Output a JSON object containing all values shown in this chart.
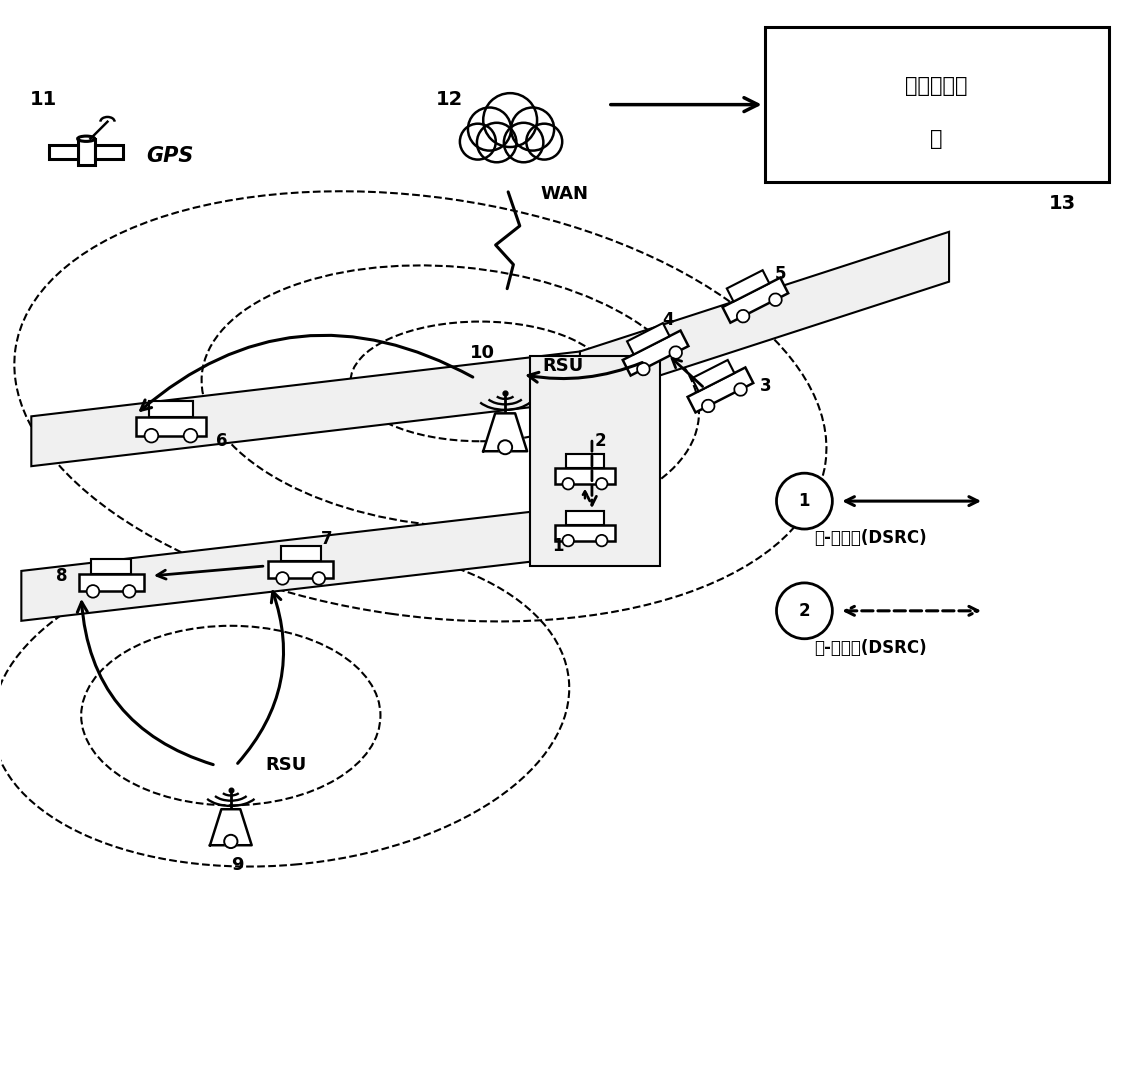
{
  "bg_color": "#ffffff",
  "label_11": "11",
  "label_12": "12",
  "label_13": "13",
  "label_gps": "GPS",
  "label_wan": "WAN",
  "label_rsu1": "RSU",
  "label_rsu2": "RSU",
  "label_10": "10",
  "label_9": "9",
  "label_8": "8",
  "label_7": "7",
  "label_6": "6",
  "label_5": "5",
  "label_4": "4",
  "label_3": "3",
  "label_2": "2",
  "label_1": "1",
  "label_box_line1": "交通管控中",
  "label_box_line2": "心",
  "legend_1_circle": "1",
  "legend_1_text": "车-路通信(DSRC)",
  "legend_2_circle": "2",
  "legend_2_text": "车-车通信(DSRC)",
  "figw": 11.39,
  "figh": 10.86,
  "dpi": 100
}
